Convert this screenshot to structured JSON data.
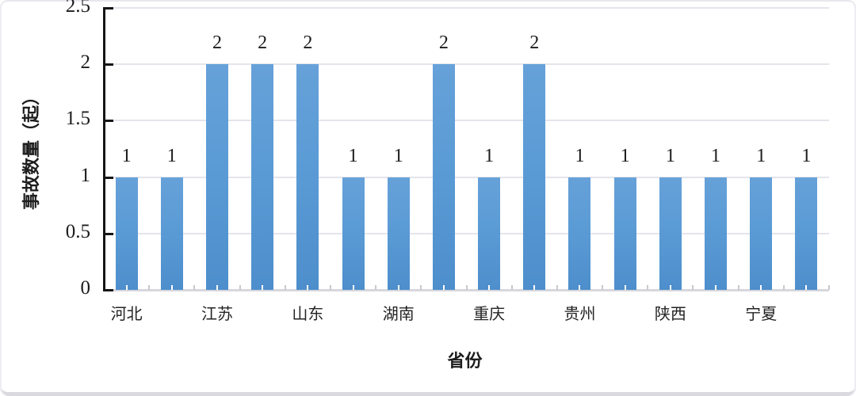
{
  "chart_data": {
    "type": "bar",
    "title": "",
    "xlabel": "省份",
    "ylabel": "事故数量（起）",
    "categories": [
      "河北",
      "",
      "江苏",
      "",
      "山东",
      "",
      "湖南",
      "",
      "重庆",
      "",
      "贵州",
      "",
      "陕西",
      "",
      "宁夏",
      ""
    ],
    "values": [
      1,
      1,
      2,
      2,
      2,
      1,
      1,
      2,
      1,
      2,
      1,
      1,
      1,
      1,
      1,
      1
    ],
    "data_labels_shown": true,
    "ylim": [
      0,
      2.5
    ],
    "yticks": [
      "0",
      "0.5",
      "1",
      "1.5",
      "2",
      "2.5"
    ],
    "grid": true,
    "legend": null,
    "colors": {
      "bar": "#5B9BD5",
      "gridline": "#E4E4EC",
      "axis_line": "#151515",
      "baseline": "#D7D7DC",
      "text": "#1C1C1C"
    }
  }
}
